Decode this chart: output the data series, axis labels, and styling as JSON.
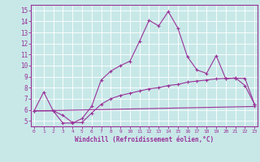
{
  "xlabel": "Windchill (Refroidissement éolien,°C)",
  "x": [
    0,
    1,
    2,
    3,
    4,
    5,
    6,
    7,
    8,
    9,
    10,
    11,
    12,
    13,
    14,
    15,
    16,
    17,
    18,
    19,
    20,
    21,
    22,
    23
  ],
  "line1_x": [
    0,
    1,
    2,
    3,
    4,
    5,
    6,
    7,
    8,
    9,
    10,
    11,
    12,
    13,
    14,
    15,
    16,
    17,
    18,
    19,
    20,
    21,
    22,
    23
  ],
  "line1_y": [
    5.9,
    7.6,
    5.9,
    4.8,
    4.8,
    5.2,
    6.3,
    8.7,
    9.5,
    10.0,
    10.4,
    12.2,
    14.1,
    13.6,
    14.9,
    13.4,
    10.8,
    9.6,
    9.3,
    10.9,
    8.8,
    8.9,
    8.2,
    6.5
  ],
  "line2_x": [
    0,
    2,
    3,
    4,
    5,
    6,
    7,
    8,
    9,
    10,
    11,
    12,
    13,
    14,
    15,
    16,
    17,
    18,
    19,
    20,
    21,
    22,
    23
  ],
  "line2_y": [
    5.9,
    5.9,
    5.5,
    4.85,
    4.85,
    5.7,
    6.5,
    7.0,
    7.3,
    7.5,
    7.7,
    7.9,
    8.0,
    8.2,
    8.3,
    8.5,
    8.6,
    8.7,
    8.8,
    8.85,
    8.85,
    8.85,
    6.5
  ],
  "line3_x": [
    0,
    23
  ],
  "line3_y": [
    5.9,
    6.3
  ],
  "line_color": "#993399",
  "bg_color": "#c8e8e8",
  "grid_color": "#b0d4d4",
  "ylim": [
    4.5,
    15.5
  ],
  "xlim": [
    -0.3,
    23.3
  ],
  "yticks": [
    5,
    6,
    7,
    8,
    9,
    10,
    11,
    12,
    13,
    14,
    15
  ],
  "xticks": [
    0,
    1,
    2,
    3,
    4,
    5,
    6,
    7,
    8,
    9,
    10,
    11,
    12,
    13,
    14,
    15,
    16,
    17,
    18,
    19,
    20,
    21,
    22,
    23
  ]
}
